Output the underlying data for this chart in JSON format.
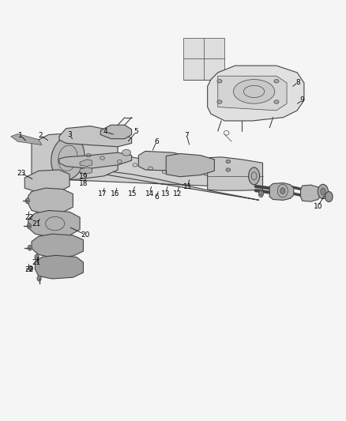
{
  "title": "",
  "background_color": "#f5f5f5",
  "line_color": "#444444",
  "text_color": "#000000",
  "fig_width": 4.38,
  "fig_height": 5.33,
  "dpi": 100
}
